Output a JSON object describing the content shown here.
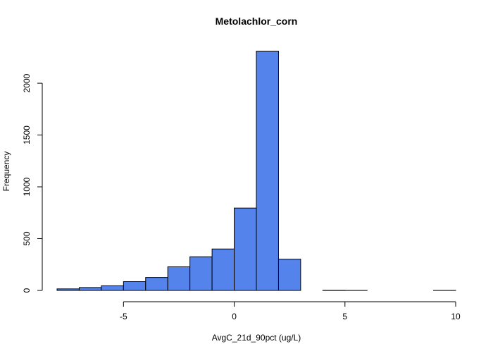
{
  "chart_data": {
    "type": "bar",
    "title": "Metolachlor_corn",
    "xlabel": "AvgC_21d_90pct (ug/L)",
    "ylabel": "Frequency",
    "bin_width": 1,
    "bins": [
      {
        "x0": -8,
        "x1": -7,
        "count": 15
      },
      {
        "x0": -7,
        "x1": -6,
        "count": 28
      },
      {
        "x0": -6,
        "x1": -5,
        "count": 45
      },
      {
        "x0": -5,
        "x1": -4,
        "count": 85
      },
      {
        "x0": -4,
        "x1": -3,
        "count": 125
      },
      {
        "x0": -3,
        "x1": -2,
        "count": 228
      },
      {
        "x0": -2,
        "x1": -1,
        "count": 325
      },
      {
        "x0": -1,
        "x1": 0,
        "count": 400
      },
      {
        "x0": 0,
        "x1": 1,
        "count": 795
      },
      {
        "x0": 1,
        "x1": 2,
        "count": 2310
      },
      {
        "x0": 2,
        "x1": 3,
        "count": 302
      },
      {
        "x0": 3,
        "x1": 4,
        "count": 0
      },
      {
        "x0": 4,
        "x1": 5,
        "count": 2
      },
      {
        "x0": 5,
        "x1": 6,
        "count": 1
      },
      {
        "x0": 6,
        "x1": 7,
        "count": 0
      },
      {
        "x0": 7,
        "x1": 8,
        "count": 0
      },
      {
        "x0": 8,
        "x1": 9,
        "count": 0
      },
      {
        "x0": 9,
        "x1": 10,
        "count": 1
      }
    ],
    "xlim": [
      -8,
      10
    ],
    "ylim": [
      0,
      2310
    ],
    "x_ticks": [
      -5,
      0,
      5,
      10
    ],
    "y_ticks": [
      0,
      500,
      1000,
      1500,
      2000
    ],
    "grid": false,
    "bar_color": "#5484eb",
    "bar_edge_color": "#000000"
  }
}
